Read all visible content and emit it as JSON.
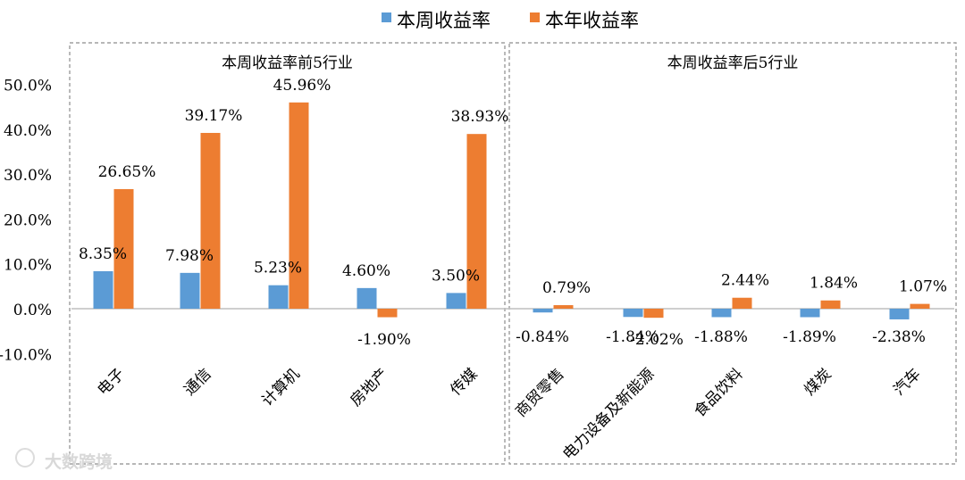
{
  "colors": {
    "weekly": "#5B9BD5",
    "yearly": "#ED7D31",
    "axis": "#bfbfbf",
    "panel_border": "#8c8c8c",
    "text": "#000000"
  },
  "legend": [
    {
      "label": "本周收益率",
      "color": "#5B9BD5"
    },
    {
      "label": "本年收益率",
      "color": "#ED7D31"
    }
  ],
  "watermark": "大数跨境",
  "chart_data": {
    "type": "bar",
    "series": [
      {
        "name": "本周收益率",
        "values": [
          8.35,
          7.98,
          5.23,
          4.6,
          3.5,
          -0.84,
          -1.84,
          -1.88,
          -1.89,
          -2.38
        ]
      },
      {
        "name": "本年收益率",
        "values": [
          26.65,
          39.17,
          45.96,
          -1.9,
          38.93,
          0.79,
          -2.02,
          2.44,
          1.84,
          1.07
        ]
      }
    ],
    "categories": [
      "电子",
      "通信",
      "计算机",
      "房地产",
      "传媒",
      "商贸零售",
      "电力设备及新能源",
      "食品饮料",
      "煤炭",
      "汽车"
    ],
    "data_labels": {
      "weekly": [
        "8.35%",
        "7.98%",
        "5.23%",
        "4.60%",
        "3.50%",
        "-0.84%",
        "-1.84%",
        "-1.88%",
        "-1.89%",
        "-2.38%"
      ],
      "yearly": [
        "26.65%",
        "39.17%",
        "45.96%",
        "-1.90%",
        "38.93%",
        "0.79%",
        "-2.02%",
        "2.44%",
        "1.84%",
        "1.07%"
      ]
    },
    "panels": [
      {
        "title": "本周收益率前5行业",
        "categories": [
          0,
          1,
          2,
          3,
          4
        ]
      },
      {
        "title": "本周收益率后5行业",
        "categories": [
          5,
          6,
          7,
          8,
          9
        ]
      }
    ],
    "yticks": [
      "-10.0%",
      "0.0%",
      "10.0%",
      "20.0%",
      "30.0%",
      "40.0%",
      "50.0%"
    ],
    "ytick_values": [
      -10,
      0,
      10,
      20,
      30,
      40,
      50
    ],
    "ylim": [
      -10,
      50
    ],
    "grid": false,
    "legend_position": "top"
  }
}
